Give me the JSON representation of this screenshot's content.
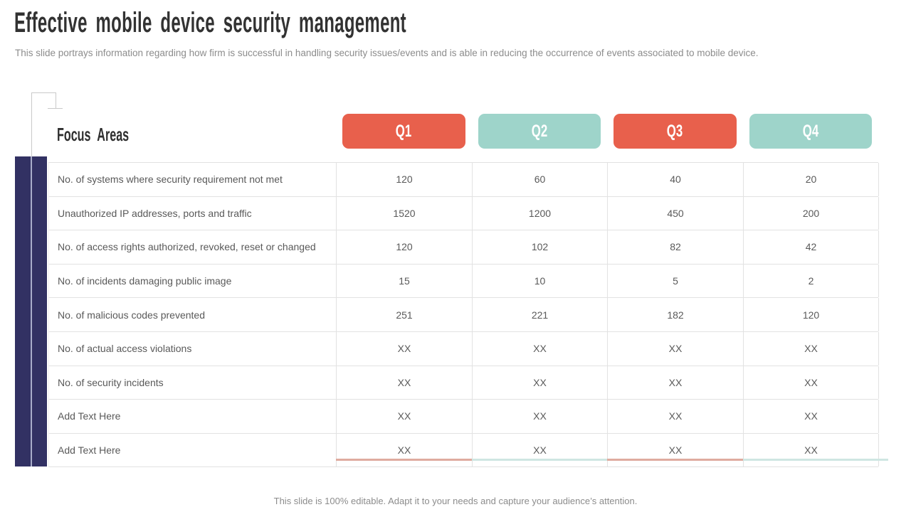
{
  "slide": {
    "title": "Effective mobile device security management",
    "subtitle": "This slide portrays information regarding how firm is successful in handling security issues/events and is able in reducing the occurrence of events associated to mobile device.",
    "footer": "This slide is 100% editable. Adapt it to your needs and capture your audience’s attention."
  },
  "table": {
    "corner_label": "Focus Areas",
    "columns": [
      {
        "label": "Q1",
        "color": "#e8604c",
        "underline": "#dfab9f"
      },
      {
        "label": "Q2",
        "color": "#9ed4ca",
        "underline": "#cfe6e2"
      },
      {
        "label": "Q3",
        "color": "#e8604c",
        "underline": "#dfab9f"
      },
      {
        "label": "Q4",
        "color": "#9ed4ca",
        "underline": "#cfe6e2"
      }
    ],
    "rows": [
      {
        "label": "No. of systems where security requirement not met",
        "values": [
          "120",
          "60",
          "40",
          "20"
        ]
      },
      {
        "label": "Unauthorized IP addresses, ports and traffic",
        "values": [
          "1520",
          "1200",
          "450",
          "200"
        ]
      },
      {
        "label": "No. of access rights authorized, revoked, reset or changed",
        "values": [
          "120",
          "102",
          "82",
          "42"
        ]
      },
      {
        "label": "No. of incidents damaging public image",
        "values": [
          "15",
          "10",
          "5",
          "2"
        ]
      },
      {
        "label": "No. of malicious codes prevented",
        "values": [
          "251",
          "221",
          "182",
          "120"
        ]
      },
      {
        "label": "No. of actual access violations",
        "values": [
          "XX",
          "XX",
          "XX",
          "XX"
        ]
      },
      {
        "label": "No. of security incidents",
        "values": [
          "XX",
          "XX",
          "XX",
          "XX"
        ]
      },
      {
        "label": "Add Text Here",
        "values": [
          "XX",
          "XX",
          "XX",
          "XX"
        ]
      },
      {
        "label": "Add Text Here",
        "values": [
          "XX",
          "XX",
          "XX",
          "XX"
        ]
      }
    ],
    "placeholder_row_label": "Add Text Here",
    "placeholder_value": "XX"
  },
  "colors": {
    "accent_navy": "#323163",
    "header_red": "#e8604c",
    "header_teal": "#9ed4ca",
    "grid_line": "#e2e2e2",
    "body_text": "#595959",
    "muted_text": "#8c8c8c",
    "title_text": "#323232",
    "deco_line": "#c9c9c9"
  }
}
